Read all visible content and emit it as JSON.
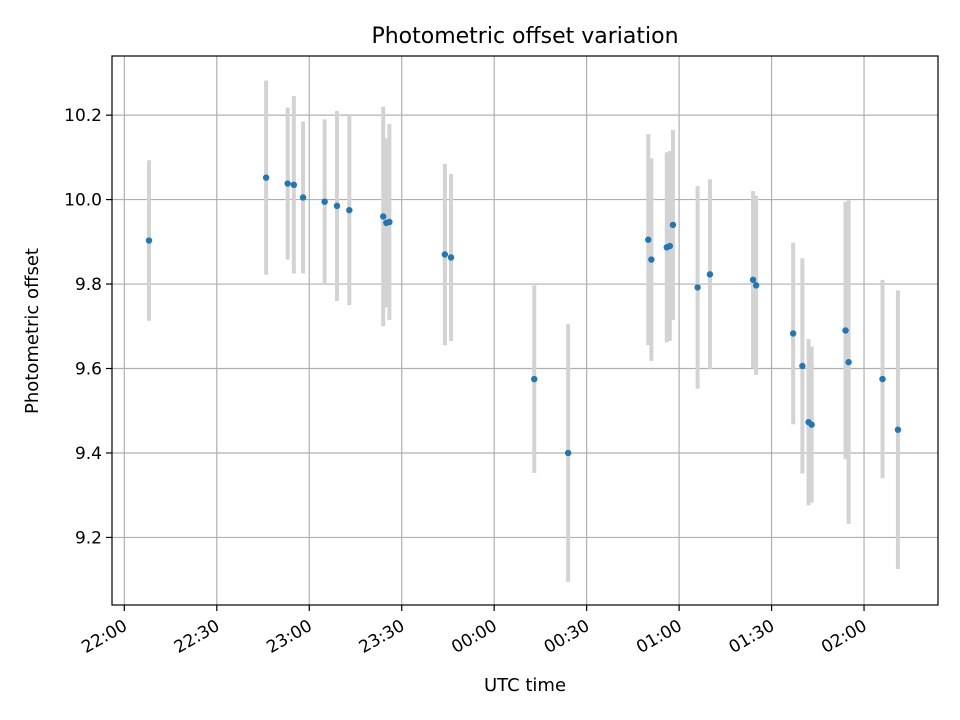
{
  "chart_data": {
    "type": "scatter",
    "title": "Photometric offset variation",
    "xlabel": "UTC time",
    "ylabel": "Photometric offset",
    "x_unit": "minutes from 22:00 UTC",
    "x_ticks": [
      0,
      30,
      60,
      90,
      120,
      150,
      180,
      210,
      240
    ],
    "x_tick_labels": [
      "22:00",
      "22:30",
      "23:00",
      "23:30",
      "00:00",
      "00:30",
      "01:00",
      "01:30",
      "02:00"
    ],
    "xlim": [
      -4,
      264
    ],
    "y_ticks": [
      9.2,
      9.4,
      9.6,
      9.8,
      10.0,
      10.2
    ],
    "y_tick_labels": [
      "9.2",
      "9.4",
      "9.6",
      "9.8",
      "10.0",
      "10.2"
    ],
    "ylim": [
      9.04,
      10.34
    ],
    "grid": true,
    "marker_color": "#1f77b4",
    "errorbar_color": "#d3d3d3",
    "points": [
      {
        "x": 8,
        "y": 9.903,
        "err": 0.19
      },
      {
        "x": 46,
        "y": 10.052,
        "err": 0.23
      },
      {
        "x": 53,
        "y": 10.038,
        "err": 0.18
      },
      {
        "x": 55,
        "y": 10.035,
        "err": 0.21
      },
      {
        "x": 58,
        "y": 10.005,
        "err": 0.18
      },
      {
        "x": 65,
        "y": 9.995,
        "err": 0.195
      },
      {
        "x": 69,
        "y": 9.985,
        "err": 0.225
      },
      {
        "x": 73,
        "y": 9.975,
        "err": 0.225
      },
      {
        "x": 84,
        "y": 9.96,
        "err": 0.26
      },
      {
        "x": 85,
        "y": 9.945,
        "err": 0.2
      },
      {
        "x": 86,
        "y": 9.947,
        "err": 0.232
      },
      {
        "x": 104,
        "y": 9.87,
        "err": 0.215
      },
      {
        "x": 106,
        "y": 9.863,
        "err": 0.198
      },
      {
        "x": 133,
        "y": 9.575,
        "err": 0.222
      },
      {
        "x": 144,
        "y": 9.4,
        "err": 0.305
      },
      {
        "x": 170,
        "y": 9.905,
        "err": 0.25
      },
      {
        "x": 171,
        "y": 9.858,
        "err": 0.24
      },
      {
        "x": 176,
        "y": 9.887,
        "err": 0.225
      },
      {
        "x": 177,
        "y": 9.89,
        "err": 0.225
      },
      {
        "x": 178,
        "y": 9.94,
        "err": 0.225
      },
      {
        "x": 186,
        "y": 9.792,
        "err": 0.24
      },
      {
        "x": 190,
        "y": 9.823,
        "err": 0.225
      },
      {
        "x": 204,
        "y": 9.81,
        "err": 0.21
      },
      {
        "x": 205,
        "y": 9.797,
        "err": 0.212
      },
      {
        "x": 217,
        "y": 9.683,
        "err": 0.215
      },
      {
        "x": 220,
        "y": 9.606,
        "err": 0.255
      },
      {
        "x": 222,
        "y": 9.473,
        "err": 0.197
      },
      {
        "x": 223,
        "y": 9.467,
        "err": 0.185
      },
      {
        "x": 234,
        "y": 9.69,
        "err": 0.305
      },
      {
        "x": 235,
        "y": 9.615,
        "err": 0.383
      },
      {
        "x": 246,
        "y": 9.575,
        "err": 0.235
      },
      {
        "x": 251,
        "y": 9.455,
        "err": 0.33
      }
    ]
  }
}
